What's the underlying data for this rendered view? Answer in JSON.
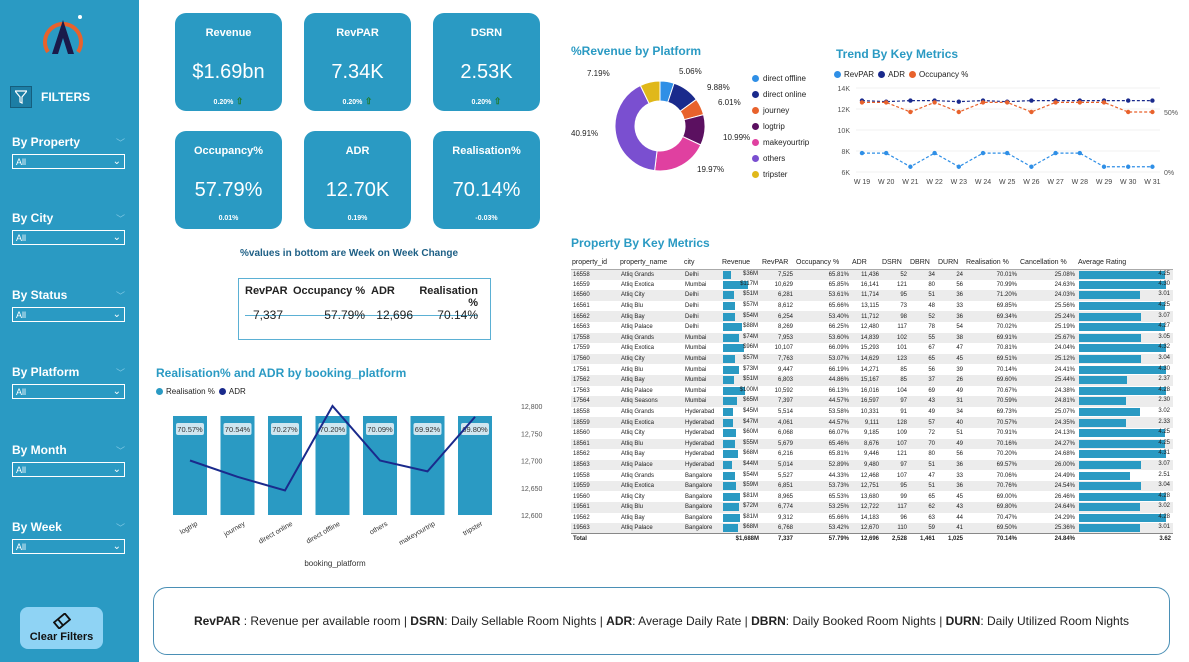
{
  "sidebar": {
    "filters_title": "FILTERS",
    "filters": [
      {
        "label": "By Property",
        "value": "All"
      },
      {
        "label": "By City",
        "value": "All"
      },
      {
        "label": "By Status",
        "value": "All"
      },
      {
        "label": "By Platform",
        "value": "All"
      },
      {
        "label": "By Month",
        "value": "All"
      },
      {
        "label": "By Week",
        "value": "All"
      }
    ],
    "clear_label": "Clear Filters"
  },
  "kpis": [
    {
      "title": "Revenue",
      "value": "$1.69bn",
      "change": "0.20%"
    },
    {
      "title": "RevPAR",
      "value": "7.34K",
      "change": "0.20%"
    },
    {
      "title": "DSRN",
      "value": "2.53K",
      "change": "0.20%"
    },
    {
      "title": "Occupancy%",
      "value": "57.79%",
      "change": "0.01%"
    },
    {
      "title": "ADR",
      "value": "12.70K",
      "change": "0.19%"
    },
    {
      "title": "Realisation%",
      "value": "70.14%",
      "change": "-0.03%"
    }
  ],
  "wow_note": "%values in bottom are Week on Week Change",
  "mini_table": {
    "headers": [
      "RevPAR",
      "Occupancy %",
      "ADR",
      "Realisation %"
    ],
    "values": [
      "7,337",
      "57.79%",
      "12,696",
      "70.14%"
    ]
  },
  "realisation_chart": {
    "title": "Realisation% and ADR by booking_platform",
    "legend": [
      "Realisation %",
      "ADR"
    ],
    "xlabel": "booking_platform",
    "categories": [
      "logtrip",
      "journey",
      "direct online",
      "direct offline",
      "others",
      "makeyourtrip",
      "tripster"
    ],
    "realisation": [
      70.57,
      70.54,
      70.27,
      70.2,
      70.09,
      69.92,
      69.8
    ],
    "realisation_labels": [
      "70.57%",
      "70.54%",
      "70.27%",
      "70.20%",
      "70.09%",
      "69.92%",
      "69.80%"
    ],
    "adr": [
      12700,
      12670,
      12645,
      12800,
      12700,
      12680,
      12780
    ],
    "y2_ticks": [
      "12,800",
      "12,750",
      "12,700",
      "12,650",
      "12,600"
    ]
  },
  "donut": {
    "title": "%Revenue by Platform",
    "legend": [
      {
        "name": "direct offline",
        "color": "#2f8fe6"
      },
      {
        "name": "direct online",
        "color": "#1a2a8c"
      },
      {
        "name": "journey",
        "color": "#e8622c"
      },
      {
        "name": "logtrip",
        "color": "#5b1060"
      },
      {
        "name": "makeyourtrip",
        "color": "#e040a0"
      },
      {
        "name": "others",
        "color": "#7a4fd0"
      },
      {
        "name": "tripster",
        "color": "#e0b81a"
      }
    ],
    "slices": [
      5.06,
      9.88,
      6.01,
      10.99,
      19.97,
      40.91,
      7.19
    ],
    "labels": [
      "5.06%",
      "9.88%",
      "6.01%",
      "10.99%",
      "19.97%",
      "40.91%",
      "7.19%"
    ]
  },
  "trend": {
    "title": "Trend By Key Metrics",
    "legend": [
      "RevPAR",
      "ADR",
      "Occupancy %"
    ],
    "colors": [
      "#2f8fe6",
      "#1a2a8c",
      "#e8622c"
    ],
    "weeks": [
      "W 19",
      "W 20",
      "W 21",
      "W 22",
      "W 23",
      "W 24",
      "W 25",
      "W 26",
      "W 27",
      "W 28",
      "W 29",
      "W 30",
      "W 31"
    ],
    "y_ticks": [
      "14K",
      "12K",
      "10K",
      "8K",
      "6K"
    ],
    "y2_ticks": [
      "50%",
      "0%"
    ],
    "revpar": [
      7800,
      7800,
      6500,
      7800,
      6500,
      7800,
      7800,
      6500,
      7800,
      7800,
      6500,
      6500,
      6500
    ],
    "adr": [
      12800,
      12700,
      12800,
      12800,
      12700,
      12800,
      12700,
      12800,
      12800,
      12800,
      12800,
      12800,
      12800
    ],
    "occupancy": [
      58,
      58,
      50,
      58,
      50,
      58,
      58,
      50,
      58,
      58,
      58,
      50,
      50
    ]
  },
  "property_table": {
    "title": "Property By Key Metrics",
    "headers": [
      "property_id",
      "property_name",
      "city",
      "Revenue",
      "RevPAR",
      "Occupancy %",
      "ADR",
      "DSRN",
      "DBRN",
      "DURN",
      "Realisation %",
      "Cancellation %",
      "Average Rating"
    ],
    "rows": [
      [
        "16558",
        "Atliq Grands",
        "Delhi",
        "$36M",
        "7,525",
        "65.81%",
        "11,436",
        "52",
        "34",
        "24",
        "70.01%",
        "25.08%",
        "4.25"
      ],
      [
        "16559",
        "Atliq Exotica",
        "Mumbai",
        "$117M",
        "10,629",
        "65.85%",
        "16,141",
        "121",
        "80",
        "56",
        "70.99%",
        "24.63%",
        "4.30"
      ],
      [
        "16560",
        "Atliq City",
        "Delhi",
        "$51M",
        "6,281",
        "53.61%",
        "11,714",
        "95",
        "51",
        "36",
        "71.20%",
        "24.03%",
        "3.01"
      ],
      [
        "16561",
        "Atliq Blu",
        "Delhi",
        "$57M",
        "8,612",
        "65.66%",
        "13,115",
        "73",
        "48",
        "33",
        "69.85%",
        "25.56%",
        "4.25"
      ],
      [
        "16562",
        "Atliq Bay",
        "Delhi",
        "$54M",
        "6,254",
        "53.40%",
        "11,712",
        "98",
        "52",
        "36",
        "69.34%",
        "25.24%",
        "3.07"
      ],
      [
        "16563",
        "Atliq Palace",
        "Delhi",
        "$88M",
        "8,269",
        "66.25%",
        "12,480",
        "117",
        "78",
        "54",
        "70.02%",
        "25.19%",
        "4.27"
      ],
      [
        "17558",
        "Atliq Grands",
        "Mumbai",
        "$74M",
        "7,953",
        "53.60%",
        "14,839",
        "102",
        "55",
        "38",
        "69.91%",
        "25.67%",
        "3.05"
      ],
      [
        "17559",
        "Atliq Exotica",
        "Mumbai",
        "$96M",
        "10,107",
        "66.09%",
        "15,293",
        "101",
        "67",
        "47",
        "70.81%",
        "24.04%",
        "4.32"
      ],
      [
        "17560",
        "Atliq City",
        "Mumbai",
        "$57M",
        "7,763",
        "53.07%",
        "14,629",
        "123",
        "65",
        "45",
        "69.51%",
        "25.12%",
        "3.04"
      ],
      [
        "17561",
        "Atliq Blu",
        "Mumbai",
        "$73M",
        "9,447",
        "66.19%",
        "14,271",
        "85",
        "56",
        "39",
        "70.14%",
        "24.41%",
        "4.30"
      ],
      [
        "17562",
        "Atliq Bay",
        "Mumbai",
        "$51M",
        "6,803",
        "44.86%",
        "15,167",
        "85",
        "37",
        "26",
        "69.60%",
        "25.44%",
        "2.37"
      ],
      [
        "17563",
        "Atliq Palace",
        "Mumbai",
        "$100M",
        "10,592",
        "66.13%",
        "16,016",
        "104",
        "69",
        "49",
        "70.67%",
        "24.38%",
        "4.28"
      ],
      [
        "17564",
        "Atliq Seasons",
        "Mumbai",
        "$65M",
        "7,397",
        "44.57%",
        "16,597",
        "97",
        "43",
        "31",
        "70.59%",
        "24.81%",
        "2.30"
      ],
      [
        "18558",
        "Atliq Grands",
        "Hyderabad",
        "$45M",
        "5,514",
        "53.58%",
        "10,331",
        "91",
        "49",
        "34",
        "69.73%",
        "25.07%",
        "3.02"
      ],
      [
        "18559",
        "Atliq Exotica",
        "Hyderabad",
        "$47M",
        "4,061",
        "44.57%",
        "9,111",
        "128",
        "57",
        "40",
        "70.57%",
        "24.35%",
        "2.33"
      ],
      [
        "18560",
        "Atliq City",
        "Hyderabad",
        "$60M",
        "6,068",
        "66.07%",
        "9,185",
        "109",
        "72",
        "51",
        "70.91%",
        "24.13%",
        "4.25"
      ],
      [
        "18561",
        "Atliq Blu",
        "Hyderabad",
        "$55M",
        "5,679",
        "65.46%",
        "8,676",
        "107",
        "70",
        "49",
        "70.16%",
        "24.27%",
        "4.25"
      ],
      [
        "18562",
        "Atliq Bay",
        "Hyderabad",
        "$68M",
        "6,216",
        "65.81%",
        "9,446",
        "121",
        "80",
        "56",
        "70.20%",
        "24.68%",
        "4.31"
      ],
      [
        "18563",
        "Atliq Palace",
        "Hyderabad",
        "$44M",
        "5,014",
        "52.89%",
        "9,480",
        "97",
        "51",
        "36",
        "69.57%",
        "26.00%",
        "3.07"
      ],
      [
        "19558",
        "Atliq Grands",
        "Bangalore",
        "$54M",
        "5,527",
        "44.33%",
        "12,468",
        "107",
        "47",
        "33",
        "70.06%",
        "24.49%",
        "2.51"
      ],
      [
        "19559",
        "Atliq Exotica",
        "Bangalore",
        "$59M",
        "6,851",
        "53.73%",
        "12,751",
        "95",
        "51",
        "36",
        "70.76%",
        "24.54%",
        "3.04"
      ],
      [
        "19560",
        "Atliq City",
        "Bangalore",
        "$81M",
        "8,965",
        "65.53%",
        "13,680",
        "99",
        "65",
        "45",
        "69.00%",
        "26.46%",
        "4.28"
      ],
      [
        "19561",
        "Atliq Blu",
        "Bangalore",
        "$72M",
        "6,774",
        "53.25%",
        "12,722",
        "117",
        "62",
        "43",
        "69.80%",
        "24.64%",
        "3.02"
      ],
      [
        "19562",
        "Atliq Bay",
        "Bangalore",
        "$81M",
        "9,312",
        "65.66%",
        "14,183",
        "96",
        "63",
        "44",
        "70.47%",
        "24.29%",
        "4.28"
      ],
      [
        "19563",
        "Atliq Palace",
        "Bangalore",
        "$68M",
        "6,768",
        "53.42%",
        "12,670",
        "110",
        "59",
        "41",
        "69.50%",
        "25.36%",
        "3.01"
      ]
    ],
    "total": [
      "Total",
      "",
      "",
      "$1,688M",
      "7,337",
      "57.79%",
      "12,696",
      "2,528",
      "1,461",
      "1,025",
      "70.14%",
      "24.84%",
      "3.62"
    ]
  },
  "footer": [
    {
      "k": "RevPAR",
      "v": " : Revenue per available room | "
    },
    {
      "k": "DSRN",
      "v": ": Daily Sellable Room Nights | "
    },
    {
      "k": "ADR",
      "v": ": Average Daily Rate | "
    },
    {
      "k": "DBRN",
      "v": ": Daily Booked Room Nights | "
    },
    {
      "k": "DURN",
      "v": ": Daily Utilized Room Nights"
    }
  ],
  "colors": {
    "accent": "#2a9ac3",
    "navy": "#1a2a8c",
    "orange": "#e8622c"
  }
}
